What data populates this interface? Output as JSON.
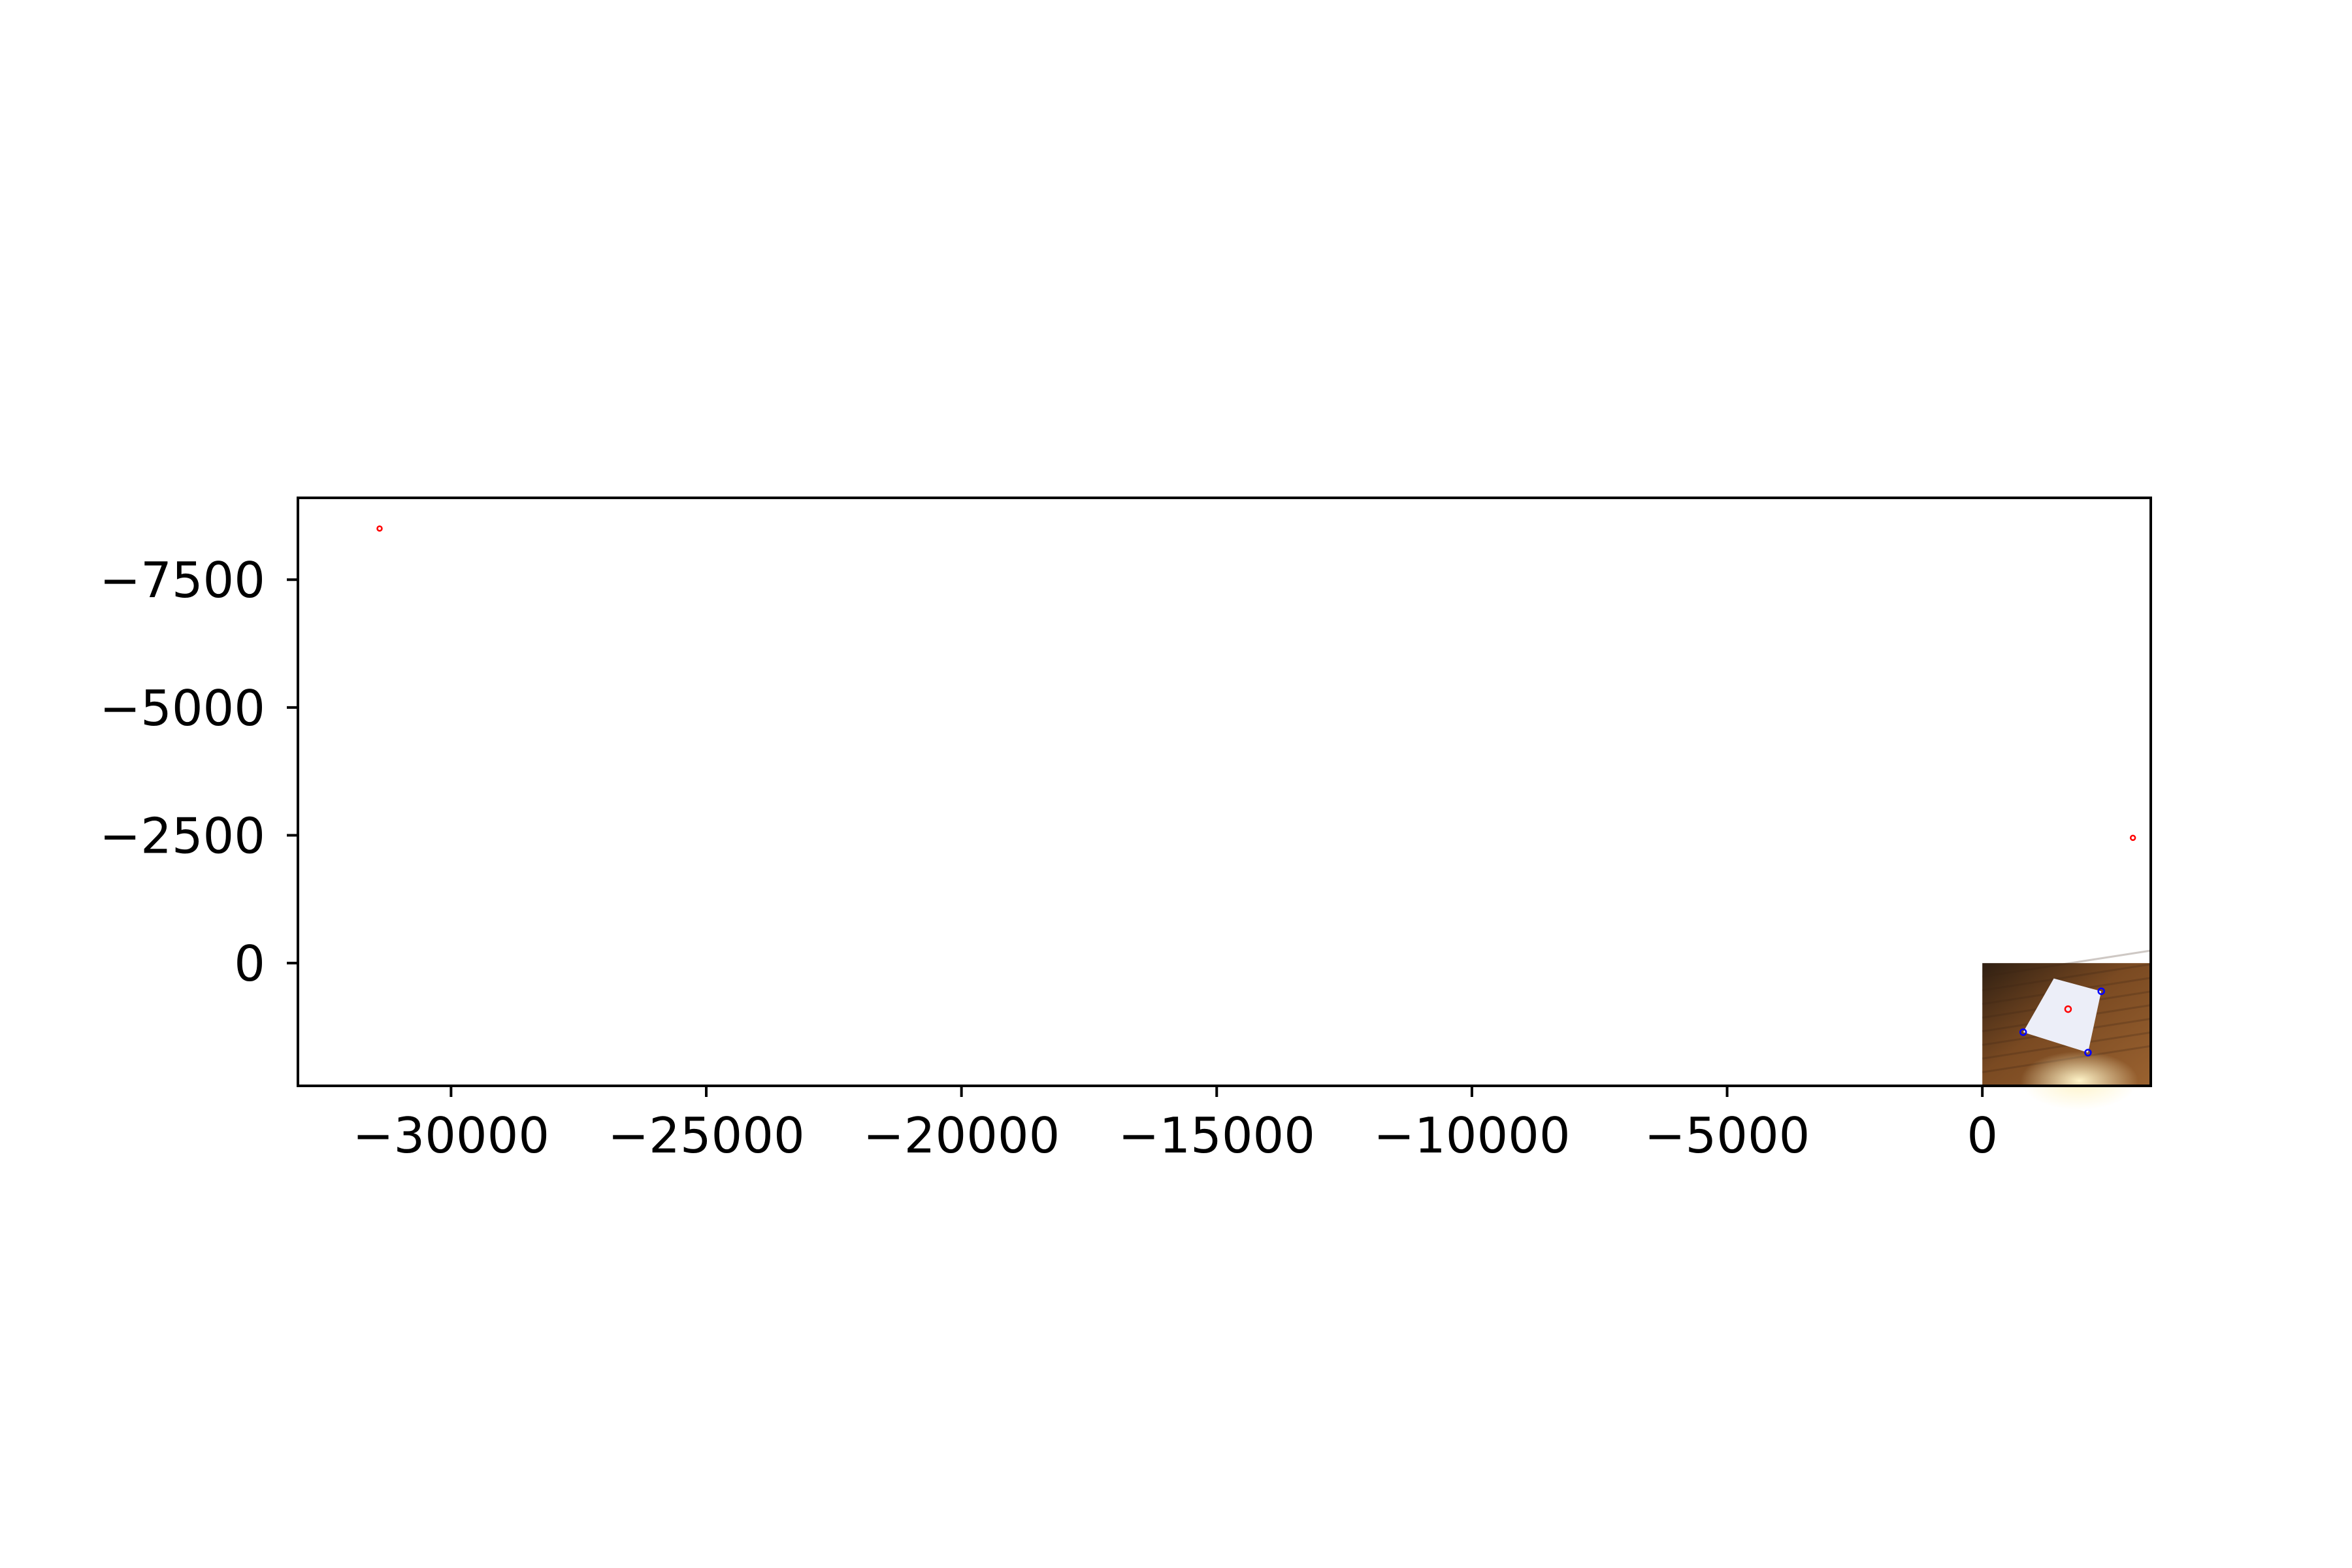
{
  "chart_data": {
    "type": "scatter",
    "title": "",
    "xlabel": "",
    "ylabel": "",
    "xlim": [
      -33000,
      3300
    ],
    "ylim": [
      2400,
      -9100
    ],
    "y_axis_inverted": true,
    "grid": false,
    "legend": "none",
    "x_ticks": [
      {
        "value": -30000,
        "label": "−30000"
      },
      {
        "value": -25000,
        "label": "−25000"
      },
      {
        "value": -20000,
        "label": "−20000"
      },
      {
        "value": -15000,
        "label": "−15000"
      },
      {
        "value": -10000,
        "label": "−10000"
      },
      {
        "value": -5000,
        "label": "−5000"
      },
      {
        "value": 0,
        "label": "0"
      }
    ],
    "y_ticks": [
      {
        "value": -7500,
        "label": "−7500"
      },
      {
        "value": -5000,
        "label": "−5000"
      },
      {
        "value": -2500,
        "label": "−2500"
      },
      {
        "value": 0,
        "label": "0"
      }
    ],
    "series": [
      {
        "marker_color": "#ff0000",
        "marker": "hollow-circle",
        "points": [
          {
            "x": -31400,
            "y": -8500
          },
          {
            "x": 2950,
            "y": -2450
          },
          {
            "x": 1680,
            "y": 900
          }
        ]
      },
      {
        "marker_color": "#0000ff",
        "marker": "hollow-circle",
        "points": [
          {
            "x": 2330,
            "y": 550
          },
          {
            "x": 800,
            "y": 1350
          },
          {
            "x": 2070,
            "y": 1750
          }
        ]
      }
    ],
    "background_image": {
      "description_icon": "photo-of-paper-on-wooden-table",
      "extent": {
        "x": [
          0,
          3300
        ],
        "y": [
          0,
          2400
        ]
      },
      "colors": {
        "wood_dark": "#2f1f12",
        "wood_mid": "#7a4a22",
        "wood_light": "#9a6230",
        "paper": "#eceef8",
        "lamp": "#fff4c8"
      },
      "paper_corners": [
        {
          "x": 1400,
          "y": 300
        },
        {
          "x": 2330,
          "y": 550
        },
        {
          "x": 2070,
          "y": 1750
        },
        {
          "x": 800,
          "y": 1350
        }
      ]
    }
  }
}
